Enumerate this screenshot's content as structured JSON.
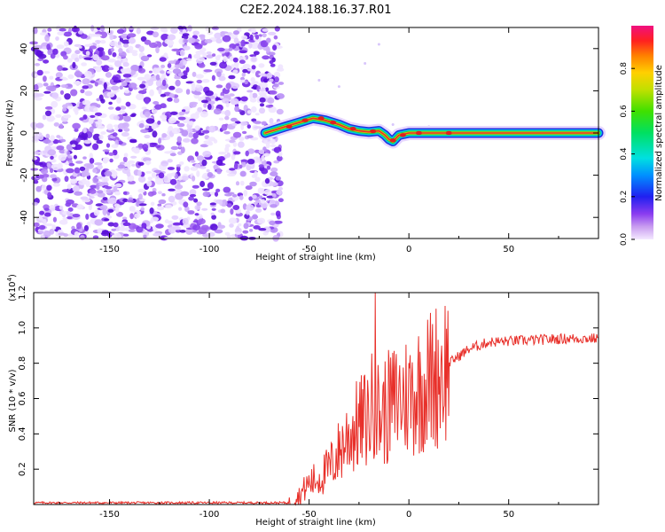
{
  "title": "C2E2.2024.188.16.37.R01",
  "chart_data": [
    {
      "type": "heatmap",
      "name": "spectrogram",
      "xlabel": "Height of straight line (km)",
      "ylabel": "Frequency (Hz)",
      "xlim": [
        -188,
        95
      ],
      "ylim": [
        -50,
        50
      ],
      "xticks": [
        -150,
        -100,
        -50,
        0,
        50
      ],
      "xtick_labels": [
        "-150",
        "-100",
        "-50",
        "0",
        "50"
      ],
      "yticks": [
        40,
        20,
        0,
        -20,
        -40
      ],
      "ytick_labels": [
        "40",
        "20",
        "0",
        "-20",
        "-40"
      ],
      "noise_region_x": [
        -188,
        -64
      ],
      "signal_track": {
        "x": [
          -72,
          -62,
          -55,
          -48,
          -42,
          -35,
          -30,
          -25,
          -20,
          -15,
          -12,
          -10,
          -8,
          -5,
          0,
          10,
          20,
          40,
          60,
          80,
          95
        ],
        "y": [
          0,
          3,
          5,
          7,
          6,
          4,
          2,
          1,
          0.5,
          1,
          -1,
          -3,
          -4,
          -1,
          0,
          0,
          0,
          0,
          0,
          0,
          0
        ]
      },
      "colorbar": {
        "label": "Normalized spectral amplitude",
        "range": [
          0,
          1
        ],
        "ticks": [
          0.0,
          0.2,
          0.4,
          0.6,
          0.8
        ],
        "tick_labels": [
          "0.0",
          "0.2",
          "0.4",
          "0.6",
          "0.8"
        ]
      }
    },
    {
      "type": "line",
      "name": "snr",
      "xlabel": "Height of straight line (km)",
      "ylabel": "SNR (10 * v/v)",
      "multiplier_label": "(x10",
      "multiplier_exp": "4",
      "multiplier_close": ")",
      "xlim": [
        -188,
        95
      ],
      "ylim": [
        0,
        1.2
      ],
      "xticks": [
        -150,
        -100,
        -50,
        0,
        50
      ],
      "xtick_labels": [
        "-150",
        "-100",
        "-50",
        "0",
        "50"
      ],
      "yticks": [
        0.2,
        0.4,
        0.6,
        0.8,
        1.0,
        1.2
      ],
      "ytick_labels": [
        "0.2",
        "0.4",
        "0.6",
        "0.8",
        "1.0",
        "1.2"
      ],
      "series": [
        {
          "name": "SNR",
          "color": "#e8302a",
          "anchors_x": [
            -188,
            -60,
            -55,
            -50,
            -45,
            -40,
            -35,
            -30,
            -25,
            -20,
            -17,
            -15,
            -10,
            -5,
            0,
            10,
            20,
            30,
            40,
            60,
            80,
            95
          ],
          "anchors_y": [
            0.01,
            0.01,
            0.05,
            0.12,
            0.15,
            0.2,
            0.3,
            0.4,
            0.45,
            0.5,
            0.6,
            0.5,
            0.55,
            0.6,
            0.62,
            0.7,
            0.8,
            0.88,
            0.92,
            0.93,
            0.94,
            0.94
          ],
          "spike": {
            "x": -17,
            "y": 1.2
          }
        }
      ]
    }
  ],
  "colors": {
    "signal_track": "#e03030",
    "noise_purple": "#7a28e8",
    "line": "#e8302a"
  }
}
